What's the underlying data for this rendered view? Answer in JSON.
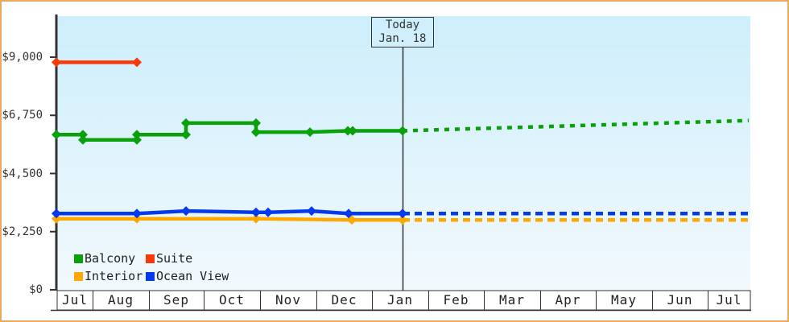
{
  "colors": {
    "frame_border": "#eaa95e",
    "axis": "#333333",
    "text": "#333333",
    "plot_bg_top": "#cdeefb",
    "plot_bg_bottom": "#f2f9fd",
    "month_row_bg": "#ffffff",
    "today_line": "#333333",
    "balcony": "#0aa00a",
    "suite": "#f83a0a",
    "interior": "#ffa800",
    "ocean_view": "#0439ee"
  },
  "y_axis": {
    "ticks": [
      {
        "label": "$9,000",
        "value": 9000
      },
      {
        "label": "$6,750",
        "value": 6750
      },
      {
        "label": "$4,500",
        "value": 4500
      },
      {
        "label": "$2,250",
        "value": 2250
      },
      {
        "label": "$0",
        "value": 0
      }
    ]
  },
  "x_axis": {
    "months": [
      "Jul",
      "Aug",
      "Sep",
      "Oct",
      "Nov",
      "Dec",
      "Jan",
      "Feb",
      "Mar",
      "Apr",
      "May",
      "Jun",
      "Jul"
    ]
  },
  "today_marker": {
    "line1": "Today",
    "line2": "Jan. 18"
  },
  "legend": [
    {
      "label": "Balcony",
      "color": "#0aa00a"
    },
    {
      "label": "Suite",
      "color": "#f83a0a"
    },
    {
      "label": "Interior",
      "color": "#ffa800"
    },
    {
      "label": "Ocean View",
      "color": "#0439ee"
    }
  ],
  "chart_data": {
    "type": "line",
    "title": "",
    "xlabel": "",
    "ylabel": "",
    "ylim": [
      0,
      10560
    ],
    "grid": false,
    "legend_position": "bottom-left",
    "x_categories": [
      "Jul",
      "Aug",
      "Sep",
      "Oct",
      "Nov",
      "Dec",
      "Jan",
      "Feb",
      "Mar",
      "Apr",
      "May",
      "Jun",
      "Jul"
    ],
    "y_ticks_usd": [
      0,
      2250,
      4500,
      6750,
      9000
    ],
    "today_label": "Today Jan. 18",
    "points_format": "[x_px_from_left, price_usd]",
    "series": [
      {
        "name": "Suite",
        "color": "#f83a0a",
        "style": "solid",
        "markers": true,
        "points": [
          [
            70,
            8800
          ],
          [
            170,
            8800
          ]
        ]
      },
      {
        "name": "Balcony",
        "color": "#0aa00a",
        "style": "solid",
        "markers": true,
        "points": [
          [
            70,
            6000
          ],
          [
            103,
            6000
          ],
          [
            103,
            5800
          ],
          [
            170,
            5800
          ],
          [
            170,
            6000
          ],
          [
            231,
            6000
          ],
          [
            231,
            6450
          ],
          [
            318,
            6450
          ],
          [
            318,
            6100
          ],
          [
            385,
            6100
          ],
          [
            432,
            6150
          ],
          [
            438,
            6150
          ],
          [
            500,
            6150
          ]
        ]
      },
      {
        "name": "Balcony forecast",
        "color": "#0aa00a",
        "style": "dotted",
        "markers": false,
        "points": [
          [
            500,
            6150
          ],
          [
            930,
            6550
          ]
        ]
      },
      {
        "name": "Interior",
        "color": "#ffa800",
        "style": "solid",
        "markers": true,
        "points": [
          [
            70,
            2750
          ],
          [
            170,
            2750
          ],
          [
            318,
            2750
          ],
          [
            437,
            2700
          ],
          [
            500,
            2700
          ]
        ]
      },
      {
        "name": "Interior forecast",
        "color": "#ffa800",
        "style": "dashed",
        "markers": false,
        "points": [
          [
            500,
            2700
          ],
          [
            930,
            2700
          ]
        ]
      },
      {
        "name": "Ocean View",
        "color": "#0439ee",
        "style": "solid",
        "markers": true,
        "points": [
          [
            70,
            2950
          ],
          [
            170,
            2950
          ],
          [
            231,
            3050
          ],
          [
            318,
            3000
          ],
          [
            333,
            3000
          ],
          [
            387,
            3050
          ],
          [
            433,
            2950
          ],
          [
            500,
            2950
          ]
        ]
      },
      {
        "name": "Ocean View forecast",
        "color": "#0439ee",
        "style": "dashed",
        "markers": false,
        "points": [
          [
            500,
            2950
          ],
          [
            930,
            2950
          ]
        ]
      }
    ]
  }
}
